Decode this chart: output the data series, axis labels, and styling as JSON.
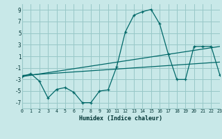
{
  "xlabel": "Humidex (Indice chaleur)",
  "background_color": "#c8e8e8",
  "grid_color": "#98c8c8",
  "line_color": "#006868",
  "x_min": 0,
  "x_max": 23,
  "y_min": -8,
  "y_max": 10,
  "yticks": [
    -7,
    -5,
    -3,
    -1,
    1,
    3,
    5,
    7,
    9
  ],
  "xticks": [
    0,
    1,
    2,
    3,
    4,
    5,
    6,
    7,
    8,
    9,
    10,
    11,
    12,
    13,
    14,
    15,
    16,
    17,
    18,
    19,
    20,
    21,
    22,
    23
  ],
  "series": [
    {
      "x": [
        0,
        1,
        2,
        3,
        4,
        5,
        6,
        7,
        8,
        9,
        10,
        11,
        12,
        13,
        14,
        15,
        16,
        17,
        18,
        19,
        20,
        21,
        22,
        23
      ],
      "y": [
        -2.5,
        -2.0,
        -3.3,
        -6.2,
        -4.7,
        -4.4,
        -5.2,
        -7.0,
        -7.0,
        -5.0,
        -4.8,
        -0.8,
        5.2,
        8.1,
        8.7,
        9.1,
        6.6,
        1.4,
        -3.0,
        -3.0,
        2.7,
        2.7,
        2.7,
        -2.2
      ],
      "marker": "*"
    },
    {
      "x": [
        0,
        23
      ],
      "y": [
        -2.3,
        0.0
      ],
      "marker": null
    },
    {
      "x": [
        0,
        23
      ],
      "y": [
        -2.5,
        2.7
      ],
      "marker": null
    }
  ]
}
